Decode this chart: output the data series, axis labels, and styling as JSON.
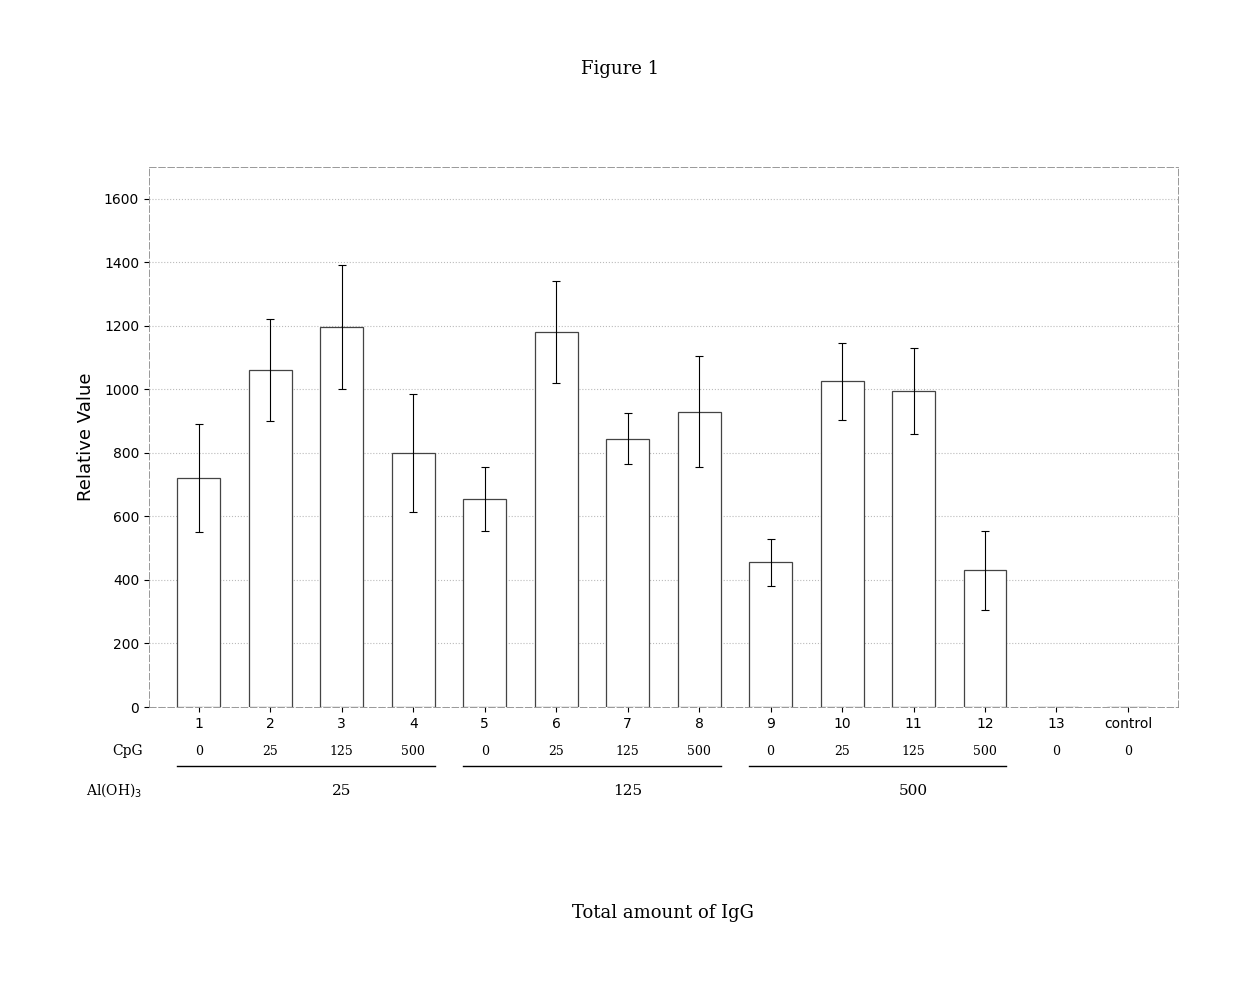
{
  "title": "Figure 1",
  "xlabel": "Total amount of IgG",
  "ylabel": "Relative Value",
  "bar_values": [
    720,
    1060,
    1195,
    800,
    655,
    1180,
    845,
    930,
    455,
    1025,
    995,
    430,
    0,
    0
  ],
  "error_values": [
    170,
    160,
    195,
    185,
    100,
    160,
    80,
    175,
    75,
    120,
    135,
    125,
    0,
    0
  ],
  "x_tick_labels": [
    "1",
    "2",
    "3",
    "4",
    "5",
    "6",
    "7",
    "8",
    "9",
    "10",
    "11",
    "12",
    "13",
    "control"
  ],
  "ylim": [
    0,
    1700
  ],
  "yticks": [
    0,
    200,
    400,
    600,
    800,
    1000,
    1200,
    1400,
    1600
  ],
  "cpg_labels": [
    "0",
    "25",
    "125",
    "500",
    "0",
    "25",
    "125",
    "500",
    "0",
    "25",
    "125",
    "500",
    "0",
    "0"
  ],
  "cpg_underline_groups": [
    [
      1,
      4
    ],
    [
      5,
      8
    ],
    [
      9,
      12
    ]
  ],
  "aloh3_centers": [
    [
      2.5,
      "25"
    ],
    [
      6.5,
      "125"
    ],
    [
      10.5,
      "500"
    ]
  ],
  "bar_color": "#ffffff",
  "bar_edge_color": "#444444",
  "background_color": "#ffffff",
  "figure_background": "#ffffff",
  "grid_color": "#bbbbbb",
  "title_fontsize": 13,
  "axis_label_fontsize": 13,
  "tick_fontsize": 10,
  "annotation_fontsize": 10
}
